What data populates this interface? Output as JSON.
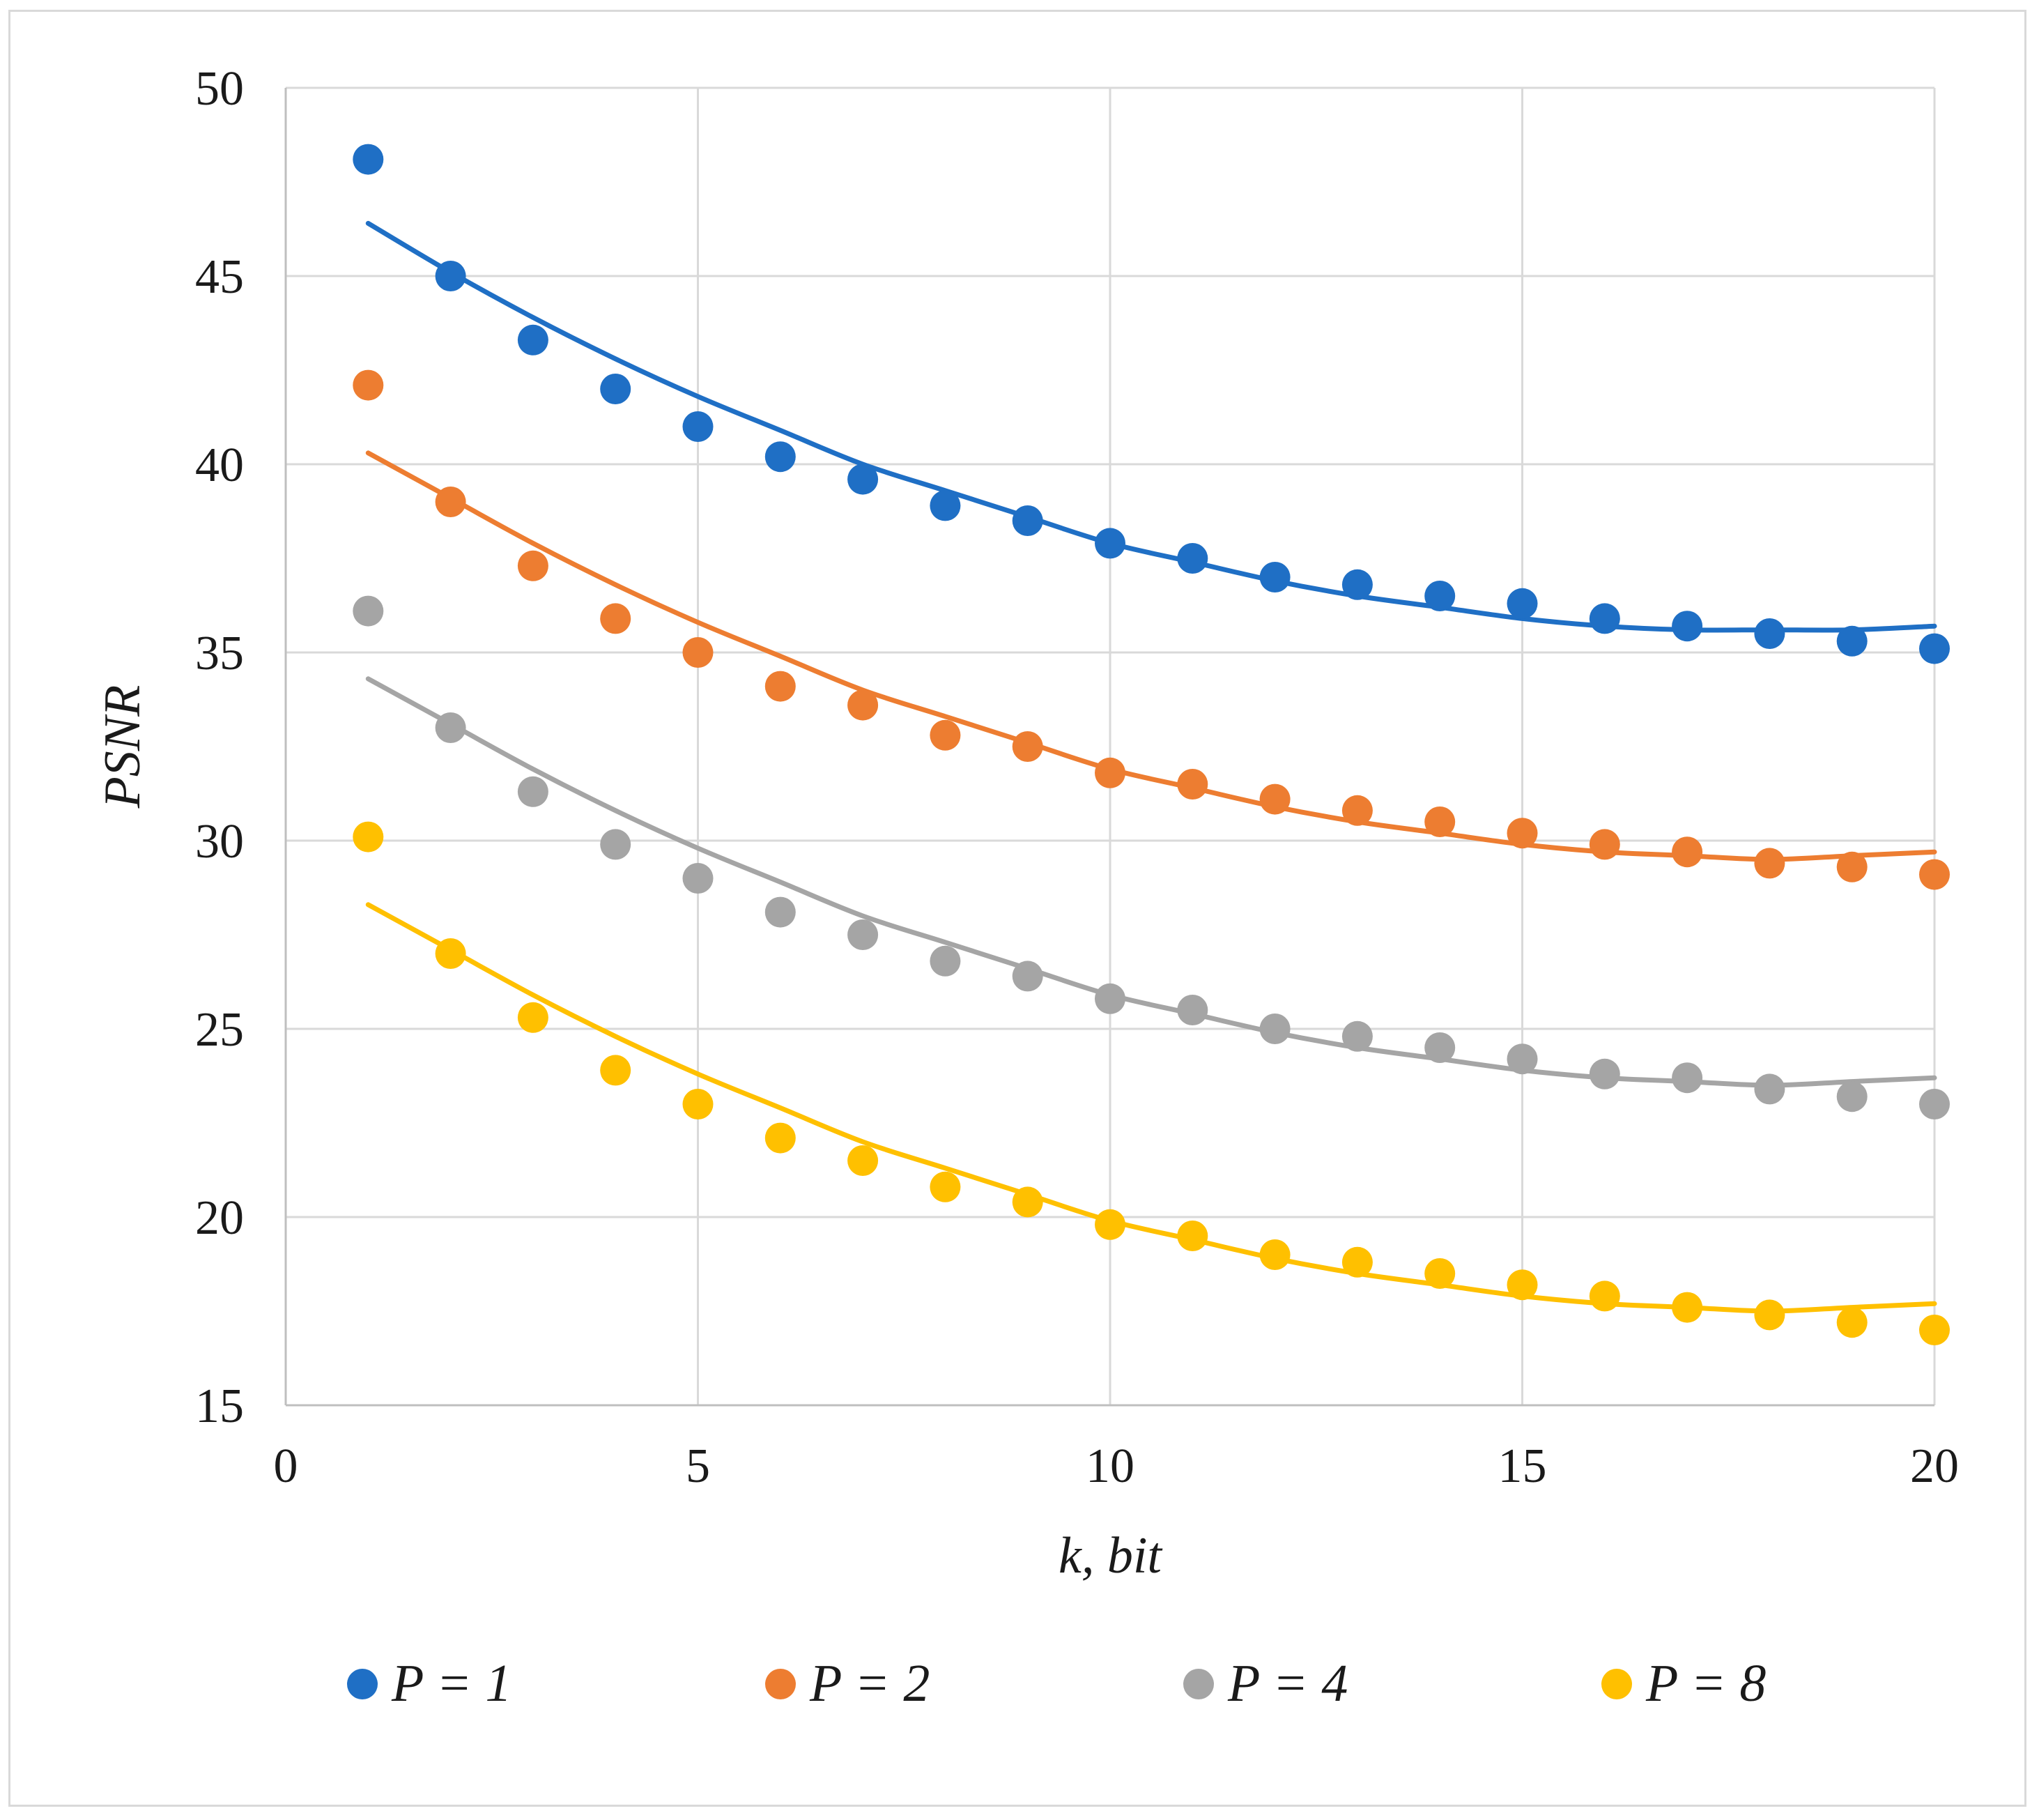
{
  "chart_data": {
    "type": "scatter",
    "title": "",
    "xlabel": "k, bit",
    "ylabel": "PSNR",
    "xlim": [
      0,
      20
    ],
    "ylim": [
      15,
      50
    ],
    "xticks": [
      0,
      5,
      10,
      15,
      20
    ],
    "yticks": [
      15,
      20,
      25,
      30,
      35,
      40,
      45,
      50
    ],
    "xtick_labels": [
      "0",
      "5",
      "10",
      "15",
      "20"
    ],
    "ytick_labels": [
      "15",
      "20",
      "25",
      "30",
      "35",
      "40",
      "45",
      "50"
    ],
    "grid": true,
    "legend_position": "bottom",
    "trendline": "polynomial order 2",
    "x": [
      1,
      2,
      3,
      4,
      5,
      6,
      7,
      8,
      9,
      10,
      11,
      12,
      13,
      14,
      15,
      16,
      17,
      18,
      19,
      20
    ],
    "series": [
      {
        "name": "P = 1",
        "color": "#1f6fc5",
        "values": [
          48.1,
          45.0,
          43.3,
          42.0,
          41.0,
          40.2,
          39.6,
          38.9,
          38.5,
          37.9,
          37.5,
          37.0,
          36.8,
          36.5,
          36.3,
          35.9,
          35.7,
          35.5,
          35.3,
          35.1
        ],
        "trend": [
          46.4,
          45.1,
          43.9,
          42.8,
          41.8,
          40.9,
          40.0,
          39.3,
          38.6,
          37.9,
          37.4,
          36.9,
          36.5,
          36.2,
          35.9,
          35.7,
          35.6,
          35.6,
          35.6,
          35.7
        ]
      },
      {
        "name": "P = 2",
        "color": "#ed7d31",
        "values": [
          42.1,
          39.0,
          37.3,
          35.9,
          35.0,
          34.1,
          33.6,
          32.8,
          32.5,
          31.8,
          31.5,
          31.1,
          30.8,
          30.5,
          30.2,
          29.9,
          29.7,
          29.4,
          29.3,
          29.1
        ],
        "trend": [
          40.3,
          39.1,
          37.9,
          36.8,
          35.8,
          34.9,
          34.0,
          33.3,
          32.6,
          31.9,
          31.4,
          30.9,
          30.5,
          30.2,
          29.9,
          29.7,
          29.6,
          29.5,
          29.6,
          29.7
        ]
      },
      {
        "name": "P = 4",
        "color": "#a5a5a5",
        "values": [
          36.1,
          33.0,
          31.3,
          29.9,
          29.0,
          28.1,
          27.5,
          26.8,
          26.4,
          25.8,
          25.5,
          25.0,
          24.8,
          24.5,
          24.2,
          23.8,
          23.7,
          23.4,
          23.2,
          23.0
        ],
        "trend": [
          34.3,
          33.1,
          31.9,
          30.8,
          29.8,
          28.9,
          28.0,
          27.3,
          26.6,
          25.9,
          25.4,
          24.9,
          24.5,
          24.2,
          23.9,
          23.7,
          23.6,
          23.5,
          23.6,
          23.7
        ]
      },
      {
        "name": "P = 8",
        "color": "#ffc000",
        "values": [
          30.1,
          27.0,
          25.3,
          23.9,
          23.0,
          22.1,
          21.5,
          20.8,
          20.4,
          19.8,
          19.5,
          19.0,
          18.8,
          18.5,
          18.2,
          17.9,
          17.6,
          17.4,
          17.2,
          17.0
        ],
        "trend": [
          28.3,
          27.1,
          25.9,
          24.8,
          23.8,
          22.9,
          22.0,
          21.3,
          20.6,
          19.9,
          19.4,
          18.9,
          18.5,
          18.2,
          17.9,
          17.7,
          17.6,
          17.5,
          17.6,
          17.7
        ]
      }
    ]
  }
}
